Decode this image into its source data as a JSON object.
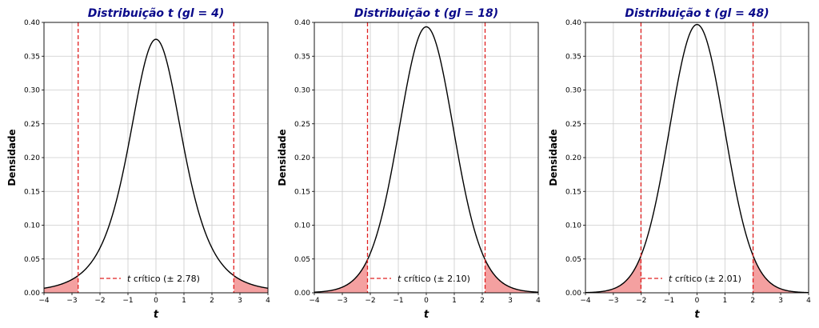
{
  "chart_data": [
    {
      "type": "line",
      "title": "Distribuição t (gl = 4)",
      "df": 4,
      "xlabel": "t",
      "ylabel": "Densidade",
      "xlim": [
        -4,
        4
      ],
      "ylim": [
        0,
        0.4
      ],
      "xticks": [
        -4,
        -3,
        -2,
        -1,
        0,
        1,
        2,
        3,
        4
      ],
      "yticks": [
        0.0,
        0.05,
        0.1,
        0.15,
        0.2,
        0.25,
        0.3,
        0.35,
        0.4
      ],
      "critical_value": 2.78,
      "legend_text": "crítico (± 2.78)",
      "legend_italic_prefix": "t",
      "grid": true
    },
    {
      "type": "line",
      "title": "Distribuição t (gl = 18)",
      "df": 18,
      "xlabel": "t",
      "ylabel": "Densidade",
      "xlim": [
        -4,
        4
      ],
      "ylim": [
        0,
        0.4
      ],
      "xticks": [
        -4,
        -3,
        -2,
        -1,
        0,
        1,
        2,
        3,
        4
      ],
      "yticks": [
        0.0,
        0.05,
        0.1,
        0.15,
        0.2,
        0.25,
        0.3,
        0.35,
        0.4
      ],
      "critical_value": 2.1,
      "legend_text": "crítico (± 2.10)",
      "legend_italic_prefix": "t",
      "grid": true
    },
    {
      "type": "line",
      "title": "Distribuição t (gl = 48)",
      "df": 48,
      "xlabel": "t",
      "ylabel": "Densidade",
      "xlim": [
        -4,
        4
      ],
      "ylim": [
        0,
        0.4
      ],
      "xticks": [
        -4,
        -3,
        -2,
        -1,
        0,
        1,
        2,
        3,
        4
      ],
      "yticks": [
        0.0,
        0.05,
        0.1,
        0.15,
        0.2,
        0.25,
        0.3,
        0.35,
        0.4
      ],
      "critical_value": 2.01,
      "legend_text": "crítico (± 2.01)",
      "legend_italic_prefix": "t",
      "grid": true
    }
  ],
  "colors": {
    "title": "#0a0a8a",
    "curve": "#000000",
    "critical_line": "#e02020",
    "tail_fill": "#f4a0a0",
    "grid": "#cccccc"
  }
}
